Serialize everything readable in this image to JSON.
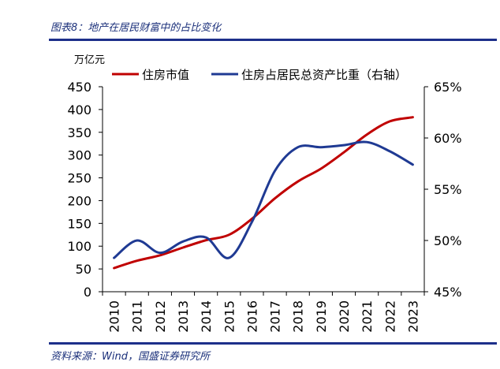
{
  "header": {
    "figure_title": "图表8：地产在居民财富中的占比变化"
  },
  "footer": {
    "source": "资料来源：Wind，国盛证券研究所"
  },
  "chart_data": {
    "type": "line",
    "title": "图表8：地产在居民财富中的占比变化",
    "unit_left": "万亿元",
    "x": [
      "2010",
      "2011",
      "2012",
      "2013",
      "2014",
      "2015",
      "2016",
      "2017",
      "2018",
      "2019",
      "2020",
      "2021",
      "2022",
      "2023"
    ],
    "ylim_left": [
      0,
      450
    ],
    "yticks_left": [
      "0",
      "50",
      "100",
      "150",
      "200",
      "250",
      "300",
      "350",
      "400",
      "450"
    ],
    "ylim_right": [
      0.45,
      0.65
    ],
    "yticks_right": [
      "45%",
      "50%",
      "55%",
      "60%",
      "65%"
    ],
    "grid": false,
    "legend_position": "top",
    "series": [
      {
        "name": "住房市值",
        "axis": "left",
        "color": "#c00000",
        "values": [
          52,
          68,
          80,
          97,
          113,
          125,
          160,
          205,
          242,
          270,
          306,
          345,
          374,
          383
        ]
      },
      {
        "name": "住房占居民总资产比重（右轴）",
        "axis": "right",
        "color": "#1f3a93",
        "values": [
          0.483,
          0.5,
          0.488,
          0.499,
          0.503,
          0.483,
          0.518,
          0.568,
          0.591,
          0.591,
          0.593,
          0.596,
          0.587,
          0.574
        ]
      }
    ]
  }
}
